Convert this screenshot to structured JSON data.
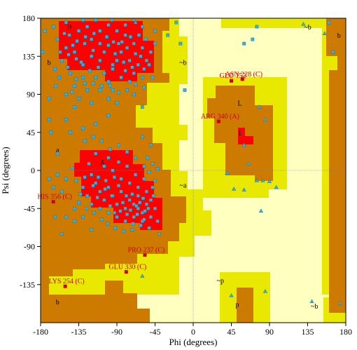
{
  "colors": {
    "background": "#ffffff",
    "generously_allowed": "#ffffc0",
    "additional_allowed": "#e8e800",
    "allowed": "#cc7a00",
    "core": "#ff0000",
    "residue_general": "#33b0dd",
    "outlier": "#cc0000",
    "label_text": "#cc0000",
    "axis": "#000000",
    "zero_line": "#888888"
  },
  "chart_data": {
    "type": "scatter",
    "xlabel": "Phi (degrees)",
    "ylabel": "Psi (degrees)",
    "xlim": [
      -180,
      180
    ],
    "ylim": [
      -180,
      180
    ],
    "xticks": [
      -180,
      -135,
      -90,
      -45,
      0,
      45,
      90,
      135,
      180
    ],
    "yticks": [
      180,
      135,
      90,
      45,
      0,
      -45,
      -90,
      -135
    ],
    "zero_lines": true,
    "region_labels": [
      {
        "text": "B",
        "phi": -146,
        "psi": 170
      },
      {
        "text": "b",
        "phi": -170,
        "psi": 128
      },
      {
        "text": "~b",
        "phi": -12,
        "psi": 128
      },
      {
        "text": "b",
        "phi": 172,
        "psi": 160
      },
      {
        "text": "~b",
        "phi": 135,
        "psi": 170
      },
      {
        "text": "L",
        "phi": 55,
        "psi": 80
      },
      {
        "text": "l",
        "phi": 55,
        "psi": 45
      },
      {
        "text": "a",
        "phi": -160,
        "psi": 25
      },
      {
        "text": "A",
        "phi": -107,
        "psi": 10
      },
      {
        "text": "~a",
        "phi": -12,
        "psi": -17
      },
      {
        "text": "~p",
        "phi": 32,
        "psi": -130
      },
      {
        "text": "p",
        "phi": 52,
        "psi": -158
      },
      {
        "text": "b",
        "phi": -160,
        "psi": -155
      },
      {
        "text": "~b",
        "phi": 143,
        "psi": -160
      }
    ],
    "outliers": [
      {
        "label": "ASN 228 (C)",
        "phi": 58,
        "psi": 108
      },
      {
        "label": "GLU 152",
        "phi": 45,
        "psi": 106
      },
      {
        "label": "ARG 340 (A)",
        "phi": 30,
        "psi": 58
      },
      {
        "label": "HIS 356 (C)",
        "phi": -165,
        "psi": -37
      },
      {
        "label": "PRO 237 (C)",
        "phi": -57,
        "psi": -100
      },
      {
        "label": "GLU 330 (C)",
        "phi": -79,
        "psi": -120
      },
      {
        "label": "LYS 254 (C)",
        "phi": -151,
        "psi": -137
      }
    ],
    "glycine_points": [
      [
        130,
        173
      ],
      [
        155,
        162
      ],
      [
        78,
        75
      ],
      [
        85,
        60
      ],
      [
        60,
        30
      ],
      [
        65,
        8
      ],
      [
        40,
        -3
      ],
      [
        75,
        -12
      ],
      [
        82,
        -12
      ],
      [
        90,
        -13
      ],
      [
        98,
        -20
      ],
      [
        60,
        -23
      ],
      [
        80,
        -48
      ],
      [
        48,
        -22
      ],
      [
        -68,
        175
      ],
      [
        -70,
        178
      ],
      [
        -60,
        -125
      ],
      [
        85,
        -143
      ],
      [
        140,
        -155
      ],
      [
        173,
        -157
      ],
      [
        45,
        -148
      ]
    ],
    "residue_points": [
      [
        -146,
        160
      ],
      [
        -120,
        155
      ],
      [
        -100,
        148
      ],
      [
        -85,
        140
      ],
      [
        -110,
        130
      ],
      [
        -130,
        125
      ],
      [
        -75,
        130
      ],
      [
        -95,
        120
      ],
      [
        -135,
        165
      ],
      [
        -125,
        170
      ],
      [
        -110,
        165
      ],
      [
        -90,
        165
      ],
      [
        -80,
        160
      ],
      [
        -70,
        150
      ],
      [
        -60,
        145
      ],
      [
        -65,
        125
      ],
      [
        -55,
        130
      ],
      [
        -140,
        140
      ],
      [
        -150,
        145
      ],
      [
        -155,
        130
      ],
      [
        -145,
        115
      ],
      [
        -130,
        110
      ],
      [
        -115,
        110
      ],
      [
        -100,
        105
      ],
      [
        -85,
        110
      ],
      [
        -75,
        105
      ],
      [
        -120,
        135
      ],
      [
        -105,
        140
      ],
      [
        -90,
        130
      ],
      [
        -80,
        118
      ],
      [
        -70,
        115
      ],
      [
        -60,
        110
      ],
      [
        -140,
        100
      ],
      [
        -125,
        95
      ],
      [
        -110,
        95
      ],
      [
        -95,
        95
      ],
      [
        -160,
        155
      ],
      [
        -165,
        170
      ],
      [
        -150,
        175
      ],
      [
        -130,
        178
      ],
      [
        -115,
        178
      ],
      [
        -100,
        172
      ],
      [
        -88,
        150
      ],
      [
        -78,
        145
      ],
      [
        -68,
        138
      ],
      [
        -58,
        120
      ],
      [
        -50,
        140
      ],
      [
        -45,
        150
      ],
      [
        -110,
        150
      ],
      [
        -118,
        142
      ],
      [
        -128,
        150
      ],
      [
        -138,
        132
      ],
      [
        -148,
        122
      ],
      [
        -158,
        110
      ],
      [
        -162,
        100
      ],
      [
        -135,
        85
      ],
      [
        -120,
        80
      ],
      [
        -100,
        85
      ],
      [
        -90,
        80
      ],
      [
        -70,
        90
      ],
      [
        -150,
        90
      ],
      [
        -140,
        75
      ],
      [
        -170,
        60
      ],
      [
        -60,
        75
      ],
      [
        -100,
        65
      ],
      [
        -95,
        125
      ],
      [
        -105,
        115
      ],
      [
        -112,
        122
      ],
      [
        -122,
        118
      ],
      [
        -132,
        128
      ],
      [
        -142,
        148
      ],
      [
        -152,
        162
      ],
      [
        -92,
        138
      ],
      [
        -82,
        128
      ],
      [
        -72,
        122
      ],
      [
        -62,
        135
      ],
      [
        -52,
        125
      ],
      [
        -48,
        110
      ],
      [
        -58,
        98
      ],
      [
        -68,
        102
      ],
      [
        -78,
        95
      ],
      [
        -88,
        92
      ],
      [
        -98,
        100
      ],
      [
        -108,
        100
      ],
      [
        -118,
        103
      ],
      [
        -128,
        103
      ],
      [
        -138,
        108
      ],
      [
        -143,
        93
      ],
      [
        -102,
        158
      ],
      [
        -94,
        152
      ],
      [
        -84,
        152
      ],
      [
        -74,
        158
      ],
      [
        -64,
        160
      ],
      [
        -56,
        155
      ],
      [
        -117,
        162
      ],
      [
        -127,
        158
      ],
      [
        -137,
        153
      ],
      [
        -147,
        137
      ],
      [
        -157,
        140
      ],
      [
        -163,
        120
      ],
      [
        -80,
        172
      ],
      [
        -96,
        178
      ],
      [
        -60,
        170
      ],
      [
        -45,
        165
      ],
      [
        -100,
        -20
      ],
      [
        -95,
        -30
      ],
      [
        -85,
        -25
      ],
      [
        -75,
        -35
      ],
      [
        -70,
        -40
      ],
      [
        -65,
        -45
      ],
      [
        -60,
        -50
      ],
      [
        -55,
        -40
      ],
      [
        -65,
        -30
      ],
      [
        -80,
        -45
      ],
      [
        -90,
        -40
      ],
      [
        -105,
        -35
      ],
      [
        -110,
        -25
      ],
      [
        -115,
        -15
      ],
      [
        -120,
        -5
      ],
      [
        -105,
        5
      ],
      [
        -95,
        0
      ],
      [
        -85,
        -10
      ],
      [
        -75,
        -15
      ],
      [
        -65,
        -20
      ],
      [
        -55,
        -25
      ],
      [
        -50,
        -35
      ],
      [
        -60,
        -60
      ],
      [
        -70,
        -55
      ],
      [
        -80,
        -60
      ],
      [
        -90,
        -55
      ],
      [
        -100,
        -50
      ],
      [
        -110,
        -45
      ],
      [
        -120,
        -40
      ],
      [
        -125,
        -30
      ],
      [
        -130,
        -20
      ],
      [
        -115,
        20
      ],
      [
        -100,
        15
      ],
      [
        -88,
        10
      ],
      [
        -78,
        5
      ],
      [
        -68,
        -5
      ],
      [
        -58,
        -10
      ],
      [
        -48,
        -20
      ],
      [
        -45,
        -45
      ],
      [
        -50,
        -55
      ],
      [
        -57,
        -48
      ],
      [
        -63,
        -38
      ],
      [
        -67,
        -42
      ],
      [
        -72,
        -28
      ],
      [
        -78,
        -52
      ],
      [
        -83,
        -38
      ],
      [
        -88,
        -18
      ],
      [
        -93,
        -8
      ],
      [
        -98,
        -42
      ],
      [
        -103,
        -12
      ],
      [
        -108,
        -58
      ],
      [
        -113,
        -32
      ],
      [
        -118,
        -18
      ],
      [
        -123,
        8
      ],
      [
        -128,
        -8
      ],
      [
        -133,
        -28
      ],
      [
        -138,
        -12
      ],
      [
        -143,
        3
      ],
      [
        -150,
        -10
      ],
      [
        -140,
        -45
      ],
      [
        -155,
        -25
      ],
      [
        -160,
        -5
      ],
      [
        -165,
        -20
      ],
      [
        -128,
        35
      ],
      [
        -118,
        40
      ],
      [
        -88,
        30
      ],
      [
        -98,
        25
      ],
      [
        -108,
        35
      ],
      [
        -78,
        22
      ],
      [
        -68,
        15
      ],
      [
        -58,
        5
      ],
      [
        -52,
        -2
      ],
      [
        -45,
        -12
      ],
      [
        -62,
        -65
      ],
      [
        -72,
        -70
      ],
      [
        -82,
        -72
      ],
      [
        -92,
        -68
      ],
      [
        -52,
        -68
      ],
      [
        -42,
        -60
      ],
      [
        -140,
        -60
      ],
      [
        -150,
        -55
      ],
      [
        -120,
        -70
      ],
      [
        -130,
        -55
      ],
      [
        -74,
        -47
      ],
      [
        -66,
        -52
      ],
      [
        -58,
        -58
      ],
      [
        -86,
        -48
      ],
      [
        -96,
        -30
      ],
      [
        -104,
        -22
      ],
      [
        -112,
        -8
      ],
      [
        -59,
        -33
      ],
      [
        -53,
        -45
      ],
      [
        -47,
        -30
      ],
      [
        -71,
        -63
      ],
      [
        -79,
        -30
      ],
      [
        -93,
        -50
      ],
      [
        -101,
        -63
      ],
      [
        -117,
        -50
      ],
      [
        -126,
        -45
      ],
      [
        -135,
        -38
      ],
      [
        -54,
        15
      ],
      [
        -48,
        8
      ],
      [
        -42,
        2
      ],
      [
        -115,
        55
      ],
      [
        -130,
        50
      ],
      [
        -145,
        45
      ],
      [
        -60,
        40
      ],
      [
        -50,
        30
      ],
      [
        -160,
        20
      ],
      [
        -170,
        -10
      ],
      [
        -163,
        -55
      ],
      [
        -155,
        -75
      ],
      [
        -40,
        -75
      ],
      [
        -20,
        175
      ],
      [
        -15,
        150
      ],
      [
        -30,
        160
      ],
      [
        60,
        150
      ],
      [
        70,
        155
      ],
      [
        75,
        170
      ],
      [
        -10,
        95
      ],
      [
        160,
        175
      ],
      [
        165,
        140
      ],
      [
        -175,
        165
      ],
      [
        -178,
        140
      ],
      [
        -170,
        85
      ],
      [
        -168,
        45
      ],
      [
        -150,
        60
      ]
    ]
  }
}
